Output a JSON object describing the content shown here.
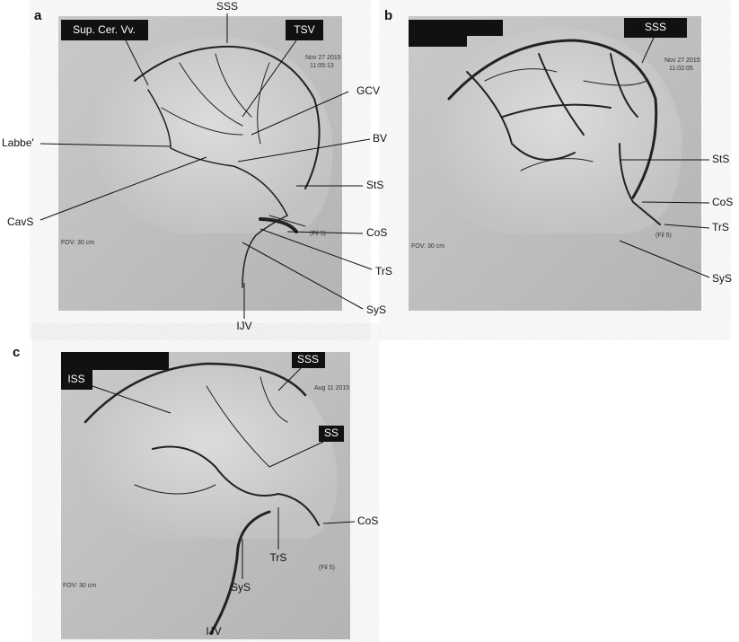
{
  "panels": [
    {
      "letter": "a",
      "labels": [
        "Sup. Cer. Vv.",
        "SSS",
        "TSV",
        "GCV",
        "Labbe'",
        "BV",
        "StS",
        "CavS",
        "CoS",
        "TrS",
        "SyS",
        "IJV"
      ],
      "overlay": [
        "Nov 27 2015",
        "11:05:13",
        "FOV: 30 cm",
        "(Fil 5)"
      ]
    },
    {
      "letter": "b",
      "labels": [
        "SSS",
        "StS",
        "CoS",
        "TrS",
        "SyS"
      ],
      "overlay": [
        "Nov 27 2015",
        "11:02:05",
        "FOV: 30 cm",
        "(Fil 5)"
      ]
    },
    {
      "letter": "c",
      "labels": [
        "ISS",
        "SSS",
        "SS",
        "CoS",
        "TrS",
        "SyS",
        "IJV"
      ],
      "overlay": [
        "Aug 11 2015",
        "FOV: 30 cm",
        "(Fil 5)"
      ]
    }
  ]
}
